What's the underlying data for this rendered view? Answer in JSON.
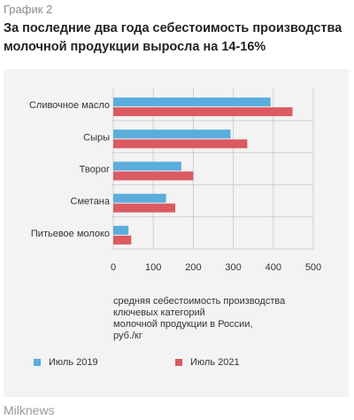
{
  "header": {
    "kicker": "График 2",
    "title": "За последние два года себестоимость производства молочной продукции выросла на 14-16%"
  },
  "source": "Milknews",
  "colors": {
    "series_2019": "#5aaddc",
    "series_2021": "#dc5a62",
    "grid": "#cfcfcf"
  },
  "chart_data": {
    "type": "bar",
    "orientation": "horizontal",
    "categories": [
      "Сливочное масло",
      "Сыры",
      "Творог",
      "Сметана",
      "Питьевое молоко"
    ],
    "series": [
      {
        "name": "Июль 2019",
        "color": "#5aaddc",
        "values": [
          393,
          293,
          170,
          132,
          38
        ]
      },
      {
        "name": "Июль 2021",
        "color": "#dc5a62",
        "values": [
          448,
          335,
          200,
          155,
          45
        ]
      }
    ],
    "xlim": [
      0,
      500
    ],
    "xticks": [
      0,
      100,
      200,
      300,
      400,
      500
    ],
    "grid": true,
    "caption_lines": [
      "средняя себестоимость производства",
      "ключевых категорий",
      "молочной продукции в России,",
      "руб./кг"
    ],
    "legend_position": "bottom"
  }
}
